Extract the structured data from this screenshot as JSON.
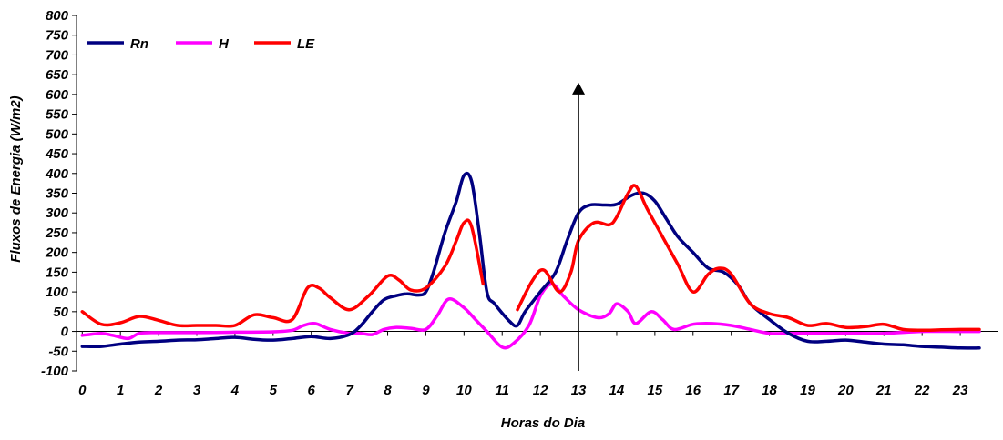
{
  "chart_data": {
    "type": "line",
    "xlabel": "Horas do Dia",
    "ylabel": "Fluxos de Energia (W/m2)",
    "ylim": [
      -100,
      800
    ],
    "y_ticks": [
      -100,
      -50,
      0,
      50,
      100,
      150,
      200,
      250,
      300,
      350,
      400,
      450,
      500,
      550,
      600,
      650,
      700,
      750,
      800
    ],
    "x_ticks": [
      0,
      1,
      2,
      3,
      4,
      5,
      6,
      7,
      8,
      9,
      10,
      11,
      12,
      13,
      14,
      15,
      16,
      17,
      18,
      19,
      20,
      21,
      22,
      23
    ],
    "xlim": [
      -0.15,
      24
    ],
    "grid": false,
    "legend_placement": "top-left",
    "series": [
      {
        "name": "Rn",
        "color": "#000080",
        "points": [
          [
            0,
            -38
          ],
          [
            0.5,
            -38
          ],
          [
            1,
            -32
          ],
          [
            1.5,
            -27
          ],
          [
            2,
            -25
          ],
          [
            2.5,
            -22
          ],
          [
            3,
            -21
          ],
          [
            3.5,
            -18
          ],
          [
            4,
            -15
          ],
          [
            4.5,
            -20
          ],
          [
            5,
            -22
          ],
          [
            5.5,
            -18
          ],
          [
            6,
            -13
          ],
          [
            6.5,
            -18
          ],
          [
            7,
            -8
          ],
          [
            7.3,
            15
          ],
          [
            7.6,
            50
          ],
          [
            7.9,
            80
          ],
          [
            8.2,
            90
          ],
          [
            8.5,
            95
          ],
          [
            8.8,
            92
          ],
          [
            9,
            100
          ],
          [
            9.2,
            150
          ],
          [
            9.5,
            250
          ],
          [
            9.8,
            330
          ],
          [
            10,
            395
          ],
          [
            10.2,
            380
          ],
          [
            10.4,
            250
          ],
          [
            10.6,
            100
          ],
          [
            10.8,
            70
          ],
          [
            11.2,
            25
          ],
          [
            11.4,
            15
          ],
          [
            11.6,
            50
          ],
          [
            12,
            100
          ],
          [
            12.4,
            150
          ],
          [
            12.7,
            230
          ],
          [
            13,
            300
          ],
          [
            13.3,
            320
          ],
          [
            13.7,
            320
          ],
          [
            14,
            322
          ],
          [
            14.4,
            345
          ],
          [
            14.7,
            350
          ],
          [
            15,
            330
          ],
          [
            15.3,
            285
          ],
          [
            15.6,
            240
          ],
          [
            16,
            200
          ],
          [
            16.4,
            160
          ],
          [
            16.8,
            150
          ],
          [
            17.2,
            115
          ],
          [
            17.5,
            70
          ],
          [
            18,
            30
          ],
          [
            18.5,
            -5
          ],
          [
            19,
            -25
          ],
          [
            19.5,
            -25
          ],
          [
            20,
            -22
          ],
          [
            20.5,
            -27
          ],
          [
            21,
            -32
          ],
          [
            21.5,
            -34
          ],
          [
            22,
            -38
          ],
          [
            22.5,
            -40
          ],
          [
            23,
            -42
          ],
          [
            23.5,
            -42
          ]
        ]
      },
      {
        "name": "H",
        "color": "#ff00ff",
        "points": [
          [
            0,
            -10
          ],
          [
            0.5,
            -5
          ],
          [
            0.8,
            -10
          ],
          [
            1.2,
            -18
          ],
          [
            1.5,
            -5
          ],
          [
            2,
            -3
          ],
          [
            3,
            -3
          ],
          [
            4,
            -2
          ],
          [
            5,
            -1
          ],
          [
            5.5,
            3
          ],
          [
            5.8,
            15
          ],
          [
            6.1,
            20
          ],
          [
            6.5,
            5
          ],
          [
            7,
            -5
          ],
          [
            7.3,
            -5
          ],
          [
            7.6,
            -8
          ],
          [
            7.9,
            5
          ],
          [
            8.2,
            10
          ],
          [
            8.6,
            8
          ],
          [
            9,
            5
          ],
          [
            9.3,
            40
          ],
          [
            9.6,
            82
          ],
          [
            10,
            60
          ],
          [
            10.3,
            30
          ],
          [
            10.6,
            0
          ],
          [
            11,
            -40
          ],
          [
            11.3,
            -30
          ],
          [
            11.7,
            15
          ],
          [
            12,
            90
          ],
          [
            12.3,
            120
          ],
          [
            12.6,
            90
          ],
          [
            13,
            55
          ],
          [
            13.5,
            35
          ],
          [
            13.8,
            45
          ],
          [
            14,
            70
          ],
          [
            14.3,
            50
          ],
          [
            14.5,
            20
          ],
          [
            14.9,
            50
          ],
          [
            15.2,
            30
          ],
          [
            15.5,
            5
          ],
          [
            16,
            18
          ],
          [
            16.5,
            20
          ],
          [
            17,
            15
          ],
          [
            17.5,
            5
          ],
          [
            18,
            -5
          ],
          [
            18.5,
            -5
          ],
          [
            19,
            -5
          ],
          [
            20,
            -5
          ],
          [
            21,
            -5
          ],
          [
            22,
            0
          ],
          [
            23,
            0
          ],
          [
            23.5,
            0
          ]
        ]
      },
      {
        "name": "LE",
        "color": "#ff0000",
        "segments": [
          [
            [
              0,
              50
            ],
            [
              0.5,
              18
            ],
            [
              1,
              22
            ],
            [
              1.5,
              38
            ],
            [
              2,
              28
            ],
            [
              2.5,
              15
            ],
            [
              3,
              15
            ],
            [
              3.5,
              15
            ],
            [
              4,
              15
            ],
            [
              4.5,
              42
            ],
            [
              5,
              35
            ],
            [
              5.5,
              30
            ],
            [
              5.9,
              110
            ],
            [
              6.2,
              110
            ],
            [
              6.5,
              85
            ],
            [
              7,
              55
            ],
            [
              7.5,
              90
            ],
            [
              8,
              140
            ],
            [
              8.3,
              130
            ],
            [
              8.6,
              105
            ],
            [
              9,
              110
            ],
            [
              9.5,
              165
            ],
            [
              9.8,
              230
            ],
            [
              10,
              275
            ],
            [
              10.2,
              265
            ],
            [
              10.5,
              120
            ]
          ],
          [
            [
              11.4,
              55
            ],
            [
              11.8,
              130
            ],
            [
              12.1,
              155
            ],
            [
              12.5,
              100
            ],
            [
              12.8,
              150
            ],
            [
              13,
              230
            ],
            [
              13.4,
              275
            ],
            [
              13.8,
              270
            ],
            [
              14,
              290
            ],
            [
              14.3,
              350
            ],
            [
              14.5,
              368
            ],
            [
              14.8,
              310
            ],
            [
              15.2,
              240
            ],
            [
              15.6,
              170
            ],
            [
              16,
              100
            ],
            [
              16.4,
              145
            ],
            [
              16.7,
              160
            ],
            [
              17,
              145
            ],
            [
              17.5,
              70
            ],
            [
              18,
              45
            ],
            [
              18.5,
              35
            ],
            [
              19,
              15
            ],
            [
              19.5,
              20
            ],
            [
              20,
              10
            ],
            [
              20.5,
              12
            ],
            [
              21,
              18
            ],
            [
              21.5,
              5
            ],
            [
              22,
              3
            ],
            [
              22.5,
              4
            ],
            [
              23,
              5
            ],
            [
              23.5,
              5
            ]
          ]
        ]
      }
    ],
    "annotations": [
      {
        "type": "vertical-arrow",
        "x": 13,
        "y_start": -100,
        "y_end": 630
      }
    ]
  }
}
